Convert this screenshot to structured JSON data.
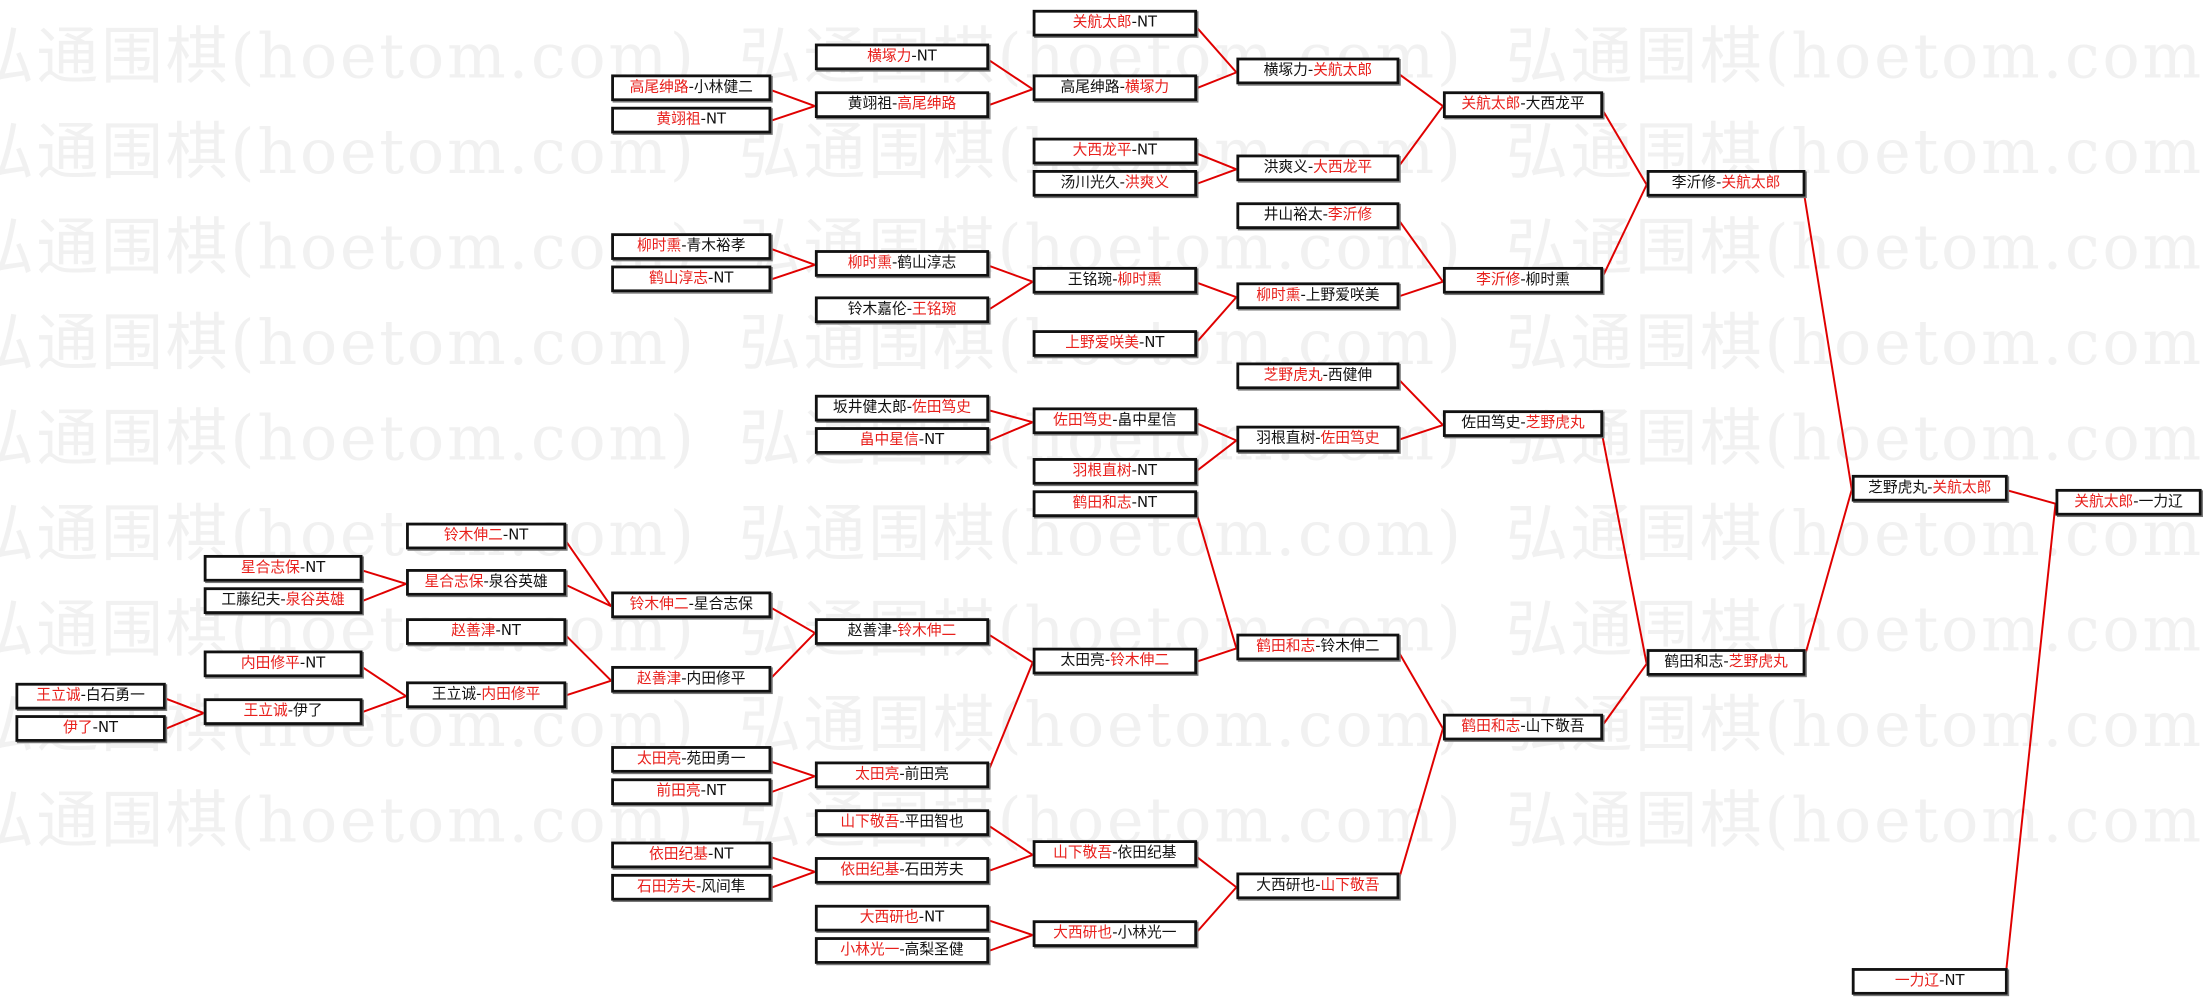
{
  "watermark": "弘通围棋(hoetom.com)",
  "colors": {
    "winner": "#e8201c",
    "line": "#e00000",
    "text": "#111111"
  },
  "separator": "-",
  "boxes": [
    {
      "left": "关航太郎",
      "right": "NT",
      "winner": "left"
    },
    {
      "left": "高尾绅路",
      "right": "横塚力",
      "winner": "right"
    },
    {
      "left": "大西龙平",
      "right": "NT",
      "winner": "left"
    },
    {
      "left": "汤川光久",
      "right": "洪爽义",
      "winner": "right"
    },
    {
      "left": "王铭琬",
      "right": "柳时熏",
      "winner": "right"
    },
    {
      "left": "上野爱咲美",
      "right": "NT",
      "winner": "left"
    },
    {
      "left": "佐田笃史",
      "right": "畠中星信",
      "winner": "left"
    },
    {
      "left": "羽根直树",
      "right": "NT",
      "winner": "left"
    },
    {
      "left": "鹤田和志",
      "right": "NT",
      "winner": "left"
    },
    {
      "left": "太田亮",
      "right": "铃木伸二",
      "winner": "right"
    },
    {
      "left": "山下敬吾",
      "right": "依田纪基",
      "winner": "left"
    },
    {
      "left": "大西研也",
      "right": "小林光一",
      "winner": "left"
    },
    {
      "left": "横塚力",
      "right": "NT",
      "winner": "left"
    },
    {
      "left": "黄翊祖",
      "right": "高尾绅路",
      "winner": "right"
    },
    {
      "left": "柳时熏",
      "right": "鹤山淳志",
      "winner": "left"
    },
    {
      "left": "铃木嘉伦",
      "right": "王铭琬",
      "winner": "right"
    },
    {
      "left": "坂井健太郎",
      "right": "佐田笃史",
      "winner": "right"
    },
    {
      "left": "畠中星信",
      "right": "NT",
      "winner": "left"
    },
    {
      "left": "赵善津",
      "right": "铃木伸二",
      "winner": "right"
    },
    {
      "left": "太田亮",
      "right": "前田亮",
      "winner": "left"
    },
    {
      "left": "山下敬吾",
      "right": "平田智也",
      "winner": "left"
    },
    {
      "left": "依田纪基",
      "right": "石田芳夫",
      "winner": "left"
    },
    {
      "left": "大西研也",
      "right": "NT",
      "winner": "left"
    },
    {
      "left": "小林光一",
      "right": "高梨圣健",
      "winner": "left"
    },
    {
      "left": "高尾绅路",
      "right": "小林健二",
      "winner": "left"
    },
    {
      "left": "黄翊祖",
      "right": "NT",
      "winner": "left"
    },
    {
      "left": "柳时熏",
      "right": "青木裕孝",
      "winner": "left"
    },
    {
      "left": "鹤山淳志",
      "right": "NT",
      "winner": "left"
    },
    {
      "left": "铃木伸二",
      "right": "星合志保",
      "winner": "left"
    },
    {
      "left": "赵善津",
      "right": "内田修平",
      "winner": "left"
    },
    {
      "left": "太田亮",
      "right": "苑田勇一",
      "winner": "left"
    },
    {
      "left": "前田亮",
      "right": "NT",
      "winner": "left"
    },
    {
      "left": "依田纪基",
      "right": "NT",
      "winner": "left"
    },
    {
      "left": "石田芳夫",
      "right": "风间隼",
      "winner": "left"
    },
    {
      "left": "铃木伸二",
      "right": "NT",
      "winner": "left"
    },
    {
      "left": "星合志保",
      "right": "泉谷英雄",
      "winner": "left"
    },
    {
      "left": "赵善津",
      "right": "NT",
      "winner": "left"
    },
    {
      "left": "王立诚",
      "right": "内田修平",
      "winner": "right"
    },
    {
      "left": "星合志保",
      "right": "NT",
      "winner": "left"
    },
    {
      "left": "工藤纪夫",
      "right": "泉谷英雄",
      "winner": "right"
    },
    {
      "left": "内田修平",
      "right": "NT",
      "winner": "left"
    },
    {
      "left": "王立诚",
      "right": "伊了",
      "winner": "left"
    },
    {
      "left": "王立诚",
      "right": "白石勇一",
      "winner": "left"
    },
    {
      "left": "伊了",
      "right": "NT",
      "winner": "left"
    },
    {
      "left": "横塚力",
      "right": "关航太郎",
      "winner": "right"
    },
    {
      "left": "洪爽义",
      "right": "大西龙平",
      "winner": "right"
    },
    {
      "left": "井山裕太",
      "right": "李沂修",
      "winner": "right"
    },
    {
      "left": "柳时熏",
      "right": "上野爱咲美",
      "winner": "left"
    },
    {
      "left": "芝野虎丸",
      "right": "西健伸",
      "winner": "left"
    },
    {
      "left": "羽根直树",
      "right": "佐田笃史",
      "winner": "right"
    },
    {
      "left": "鹤田和志",
      "right": "铃木伸二",
      "winner": "left"
    },
    {
      "left": "大西研也",
      "right": "山下敬吾",
      "winner": "right"
    },
    {
      "left": "关航太郎",
      "right": "大西龙平",
      "winner": "left"
    },
    {
      "left": "李沂修",
      "right": "柳时熏",
      "winner": "left"
    },
    {
      "left": "佐田笃史",
      "right": "芝野虎丸",
      "winner": "right"
    },
    {
      "left": "鹤田和志",
      "right": "山下敬吾",
      "winner": "left"
    },
    {
      "left": "李沂修",
      "right": "关航太郎",
      "winner": "right"
    },
    {
      "left": "鹤田和志",
      "right": "芝野虎丸",
      "winner": "right"
    },
    {
      "left": "芝野虎丸",
      "right": "关航太郎",
      "winner": "right"
    },
    {
      "left": "一力辽",
      "right": "NT",
      "winner": "left"
    },
    {
      "left": "关航太郎",
      "right": "一力辽",
      "winner": "left"
    }
  ]
}
